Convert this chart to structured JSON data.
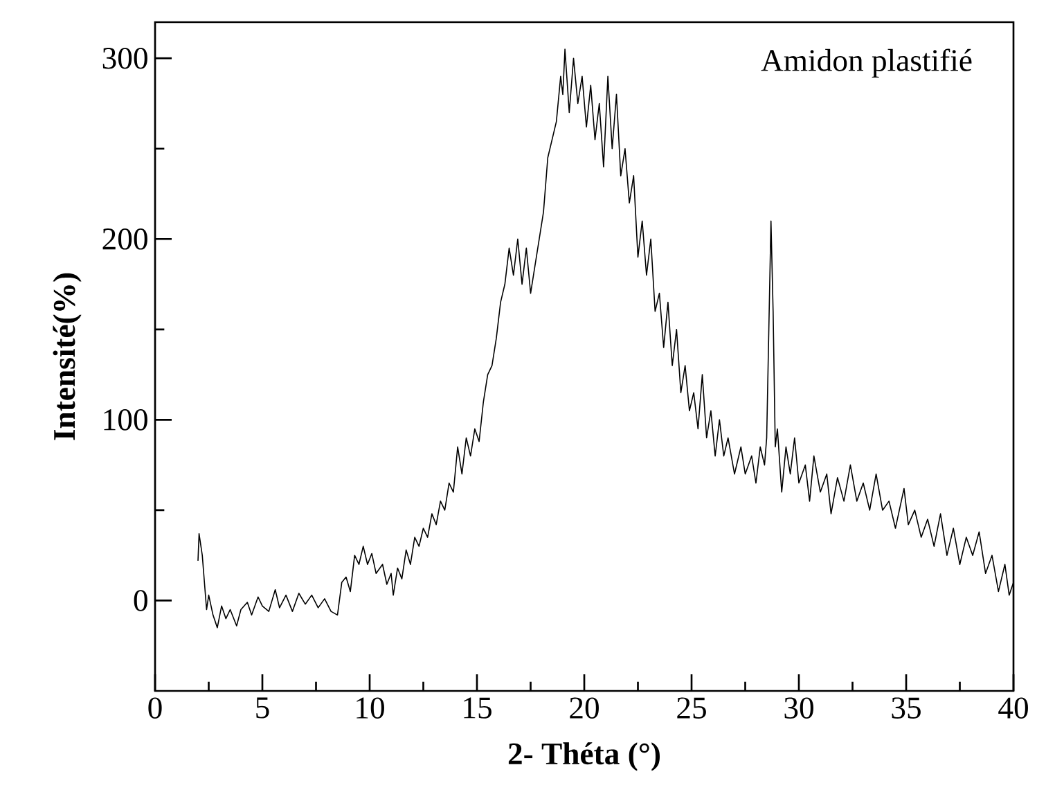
{
  "chart_data": {
    "type": "line",
    "xlabel": "2- Théta (°)",
    "ylabel": "Intensité(%)",
    "annotations": [
      "Amidon plastifié"
    ],
    "xlim": [
      0,
      40
    ],
    "ylim": [
      -50,
      320
    ],
    "xticks": [
      0,
      {
        "value": 2.5,
        "label": null
      },
      5,
      {
        "value": 7.5,
        "label": null
      },
      10,
      {
        "value": 12.5,
        "label": null
      },
      15,
      {
        "value": 17.5,
        "label": null
      },
      20,
      {
        "value": 22.5,
        "label": null
      },
      25,
      {
        "value": 27.5,
        "label": null
      },
      30,
      {
        "value": 32.5,
        "label": null
      },
      35,
      {
        "value": 37.5,
        "label": null
      },
      40
    ],
    "yticks": [
      0,
      {
        "value": 50,
        "label": null
      },
      100,
      {
        "value": 150,
        "label": null
      },
      200,
      {
        "value": 250,
        "label": null
      },
      300
    ],
    "grid": false,
    "marker": "none",
    "line_style": "solid",
    "series": [
      {
        "color": "#000000",
        "x": [
          2.0,
          2.05,
          2.2,
          2.4,
          2.5,
          2.7,
          2.9,
          3.1,
          3.3,
          3.5,
          3.8,
          4.0,
          4.3,
          4.5,
          4.8,
          5.0,
          5.3,
          5.6,
          5.8,
          6.1,
          6.4,
          6.7,
          7.0,
          7.3,
          7.6,
          7.9,
          8.2,
          8.5,
          8.7,
          8.9,
          9.1,
          9.3,
          9.5,
          9.7,
          9.9,
          10.1,
          10.3,
          10.6,
          10.8,
          11.0,
          11.1,
          11.3,
          11.5,
          11.7,
          11.9,
          12.1,
          12.3,
          12.5,
          12.7,
          12.9,
          13.1,
          13.3,
          13.5,
          13.7,
          13.9,
          14.1,
          14.3,
          14.5,
          14.7,
          14.9,
          15.1,
          15.3,
          15.5,
          15.7,
          15.9,
          16.1,
          16.3,
          16.5,
          16.7,
          16.9,
          17.1,
          17.3,
          17.5,
          17.7,
          17.9,
          18.1,
          18.3,
          18.5,
          18.7,
          18.9,
          19.0,
          19.1,
          19.3,
          19.5,
          19.7,
          19.9,
          20.1,
          20.3,
          20.5,
          20.7,
          20.9,
          21.1,
          21.3,
          21.5,
          21.7,
          21.9,
          22.1,
          22.3,
          22.5,
          22.7,
          22.9,
          23.1,
          23.3,
          23.5,
          23.7,
          23.9,
          24.1,
          24.3,
          24.5,
          24.7,
          24.9,
          25.1,
          25.3,
          25.5,
          25.7,
          25.9,
          26.1,
          26.3,
          26.5,
          26.7,
          27.0,
          27.3,
          27.5,
          27.8,
          28.0,
          28.2,
          28.4,
          28.5,
          28.6,
          28.7,
          28.8,
          28.9,
          29.0,
          29.2,
          29.4,
          29.6,
          29.8,
          30.0,
          30.3,
          30.5,
          30.7,
          31.0,
          31.3,
          31.5,
          31.8,
          32.1,
          32.4,
          32.7,
          33.0,
          33.3,
          33.6,
          33.9,
          34.2,
          34.5,
          34.9,
          35.1,
          35.4,
          35.7,
          36.0,
          36.3,
          36.6,
          36.9,
          37.2,
          37.5,
          37.8,
          38.1,
          38.4,
          38.7,
          39.0,
          39.3,
          39.6,
          39.8,
          40.0
        ],
        "values": [
          22,
          37,
          25,
          -5,
          3,
          -8,
          -15,
          -3,
          -10,
          -5,
          -14,
          -5,
          -1,
          -8,
          2,
          -3,
          -6,
          6,
          -4,
          3,
          -6,
          4,
          -2,
          3,
          -4,
          1,
          -6,
          -8,
          10,
          13,
          5,
          25,
          20,
          30,
          20,
          26,
          15,
          20,
          9,
          15,
          3,
          18,
          12,
          28,
          20,
          35,
          30,
          40,
          35,
          48,
          42,
          55,
          50,
          65,
          60,
          85,
          70,
          90,
          80,
          95,
          88,
          110,
          125,
          130,
          145,
          165,
          175,
          195,
          180,
          200,
          175,
          195,
          170,
          185,
          200,
          215,
          245,
          255,
          265,
          290,
          280,
          305,
          270,
          300,
          275,
          290,
          262,
          285,
          255,
          275,
          240,
          290,
          250,
          280,
          235,
          250,
          220,
          235,
          190,
          210,
          180,
          200,
          160,
          170,
          140,
          165,
          130,
          150,
          115,
          130,
          105,
          115,
          95,
          125,
          90,
          105,
          80,
          100,
          80,
          90,
          70,
          85,
          70,
          80,
          65,
          85,
          75,
          90,
          150,
          210,
          160,
          85,
          95,
          60,
          85,
          70,
          90,
          65,
          75,
          55,
          80,
          60,
          70,
          48,
          68,
          55,
          75,
          55,
          65,
          50,
          70,
          50,
          55,
          40,
          62,
          42,
          50,
          35,
          45,
          30,
          48,
          25,
          40,
          20,
          35,
          25,
          38,
          15,
          25,
          5,
          20,
          3,
          10
        ]
      }
    ]
  }
}
